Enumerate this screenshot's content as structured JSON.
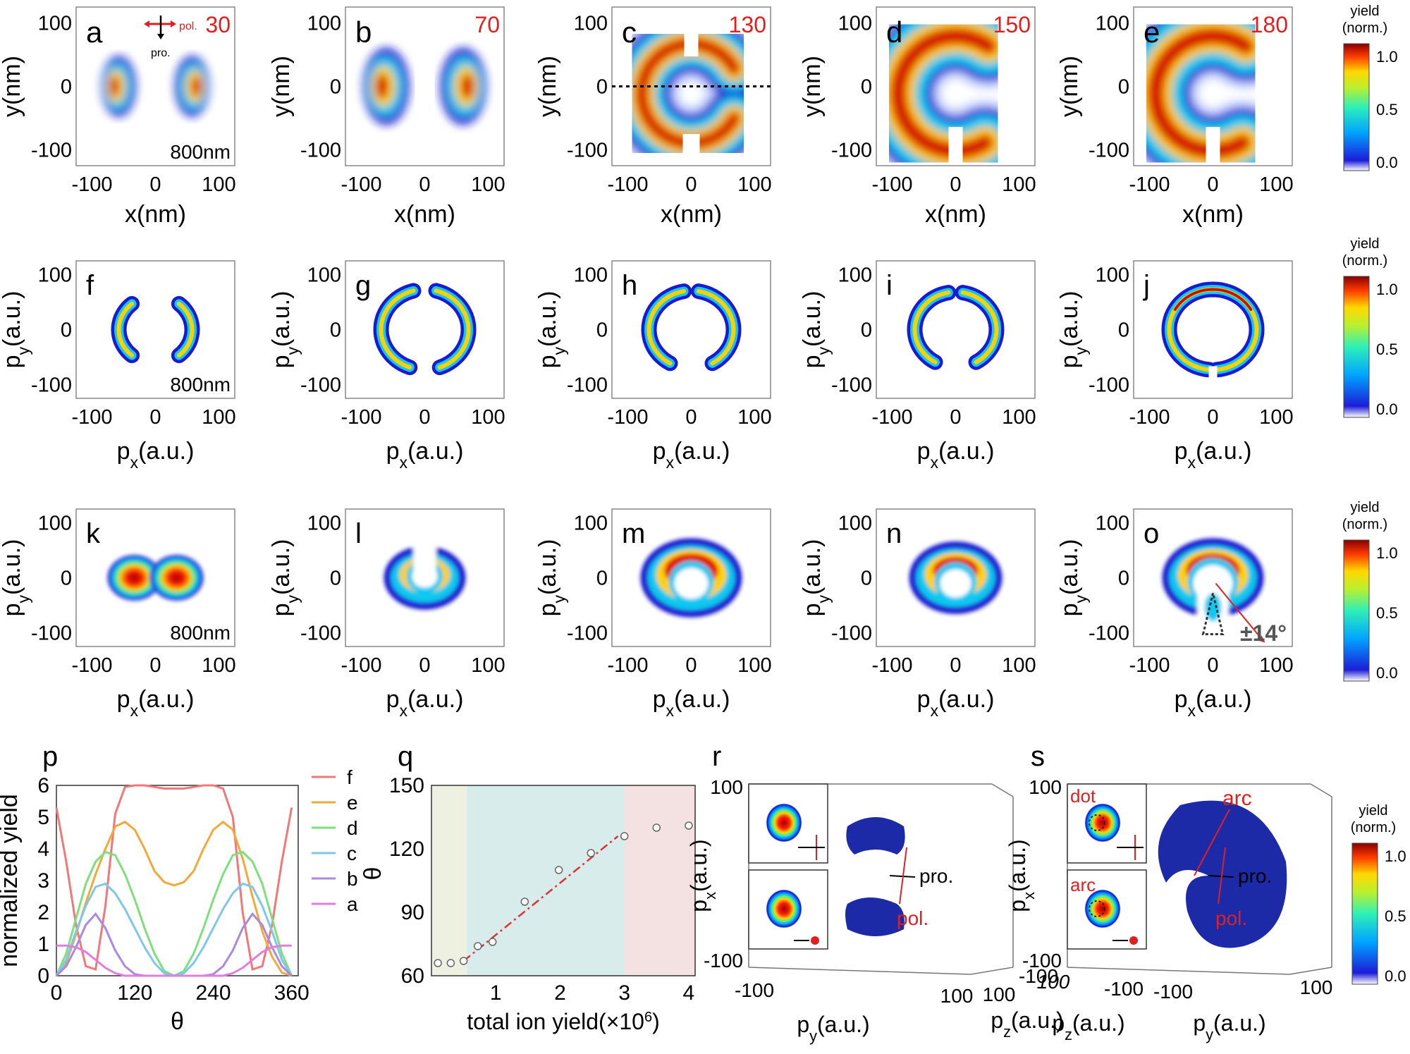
{
  "colorbar": {
    "title1": "yield",
    "title2": "(norm.)",
    "ticks": [
      "1.0",
      "0.5",
      "0.0"
    ]
  },
  "panels_real": [
    {
      "letter": "a",
      "angle": "30",
      "note": "800nm",
      "ylabel": "y(nm)",
      "xlabel": "x(nm)",
      "shape": "crescents",
      "param": 0.2,
      "inset": {
        "pol": "pol.",
        "pro": "pro."
      }
    },
    {
      "letter": "b",
      "angle": "70",
      "ylabel": "y(nm)",
      "xlabel": "x(nm)",
      "shape": "crescents",
      "param": 0.45
    },
    {
      "letter": "c",
      "angle": "130",
      "ylabel": "y(nm)",
      "xlabel": "x(nm)",
      "shape": "open-ring",
      "param": 0.82,
      "dotted_line": true
    },
    {
      "letter": "d",
      "angle": "150",
      "ylabel": "y(nm)",
      "xlabel": "x(nm)",
      "shape": "horseshoe",
      "param": 1.0
    },
    {
      "letter": "e",
      "angle": "180",
      "ylabel": "y(nm)",
      "xlabel": "x(nm)",
      "shape": "horseshoe",
      "param": 1.1
    }
  ],
  "panels_mom": [
    {
      "letter": "f",
      "note": "800nm",
      "ylabel": "p",
      "ysub": "y",
      "yunit": "(a.u.)",
      "xlabel": "p",
      "xsub": "x",
      "xunit": "(a.u.)"
    },
    {
      "letter": "g",
      "ylabel": "p",
      "ysub": "y",
      "yunit": "(a.u.)",
      "xlabel": "p",
      "xsub": "x",
      "xunit": "(a.u.)"
    },
    {
      "letter": "h",
      "ylabel": "p",
      "ysub": "y",
      "yunit": "(a.u.)",
      "xlabel": "p",
      "xsub": "x",
      "xunit": "(a.u.)"
    },
    {
      "letter": "i",
      "ylabel": "p",
      "ysub": "y",
      "yunit": "(a.u.)",
      "xlabel": "p",
      "xsub": "x",
      "xunit": "(a.u.)"
    },
    {
      "letter": "j",
      "ylabel": "p",
      "ysub": "y",
      "yunit": "(a.u.)",
      "xlabel": "p",
      "xsub": "x",
      "xunit": "(a.u.)"
    }
  ],
  "panels_exp": [
    {
      "letter": "k",
      "note": "800nm",
      "ylabel": "p",
      "ysub": "y",
      "yunit": "(a.u.)",
      "xlabel": "p",
      "xsub": "x",
      "xunit": "(a.u.)"
    },
    {
      "letter": "l",
      "ylabel": "p",
      "ysub": "y",
      "yunit": "(a.u.)",
      "xlabel": "p",
      "xsub": "x",
      "xunit": "(a.u.)"
    },
    {
      "letter": "m",
      "ylabel": "p",
      "ysub": "y",
      "yunit": "(a.u.)",
      "xlabel": "p",
      "xsub": "x",
      "xunit": "(a.u.)"
    },
    {
      "letter": "n",
      "ylabel": "p",
      "ysub": "y",
      "yunit": "(a.u.)",
      "xlabel": "p",
      "xsub": "x",
      "xunit": "(a.u.)"
    },
    {
      "letter": "o",
      "ylabel": "p",
      "ysub": "y",
      "yunit": "(a.u.)",
      "xlabel": "p",
      "xsub": "x",
      "xunit": "(a.u.)",
      "angle_note": "±14°"
    }
  ],
  "axis_ticks": [
    "-100",
    "0",
    "100"
  ],
  "panel_p": {
    "letter": "p",
    "ylabel": "normalized yield",
    "xlabel": "θ"
  },
  "panel_q": {
    "letter": "q",
    "ylabel": "θ",
    "xlabel": "total ion yield(×10",
    "xlabel_sup": "6",
    "xlabel_end": ")"
  },
  "panel_r": {
    "letter": "r",
    "ylabel": "p",
    "ysub": "x",
    "yunit": "(a.u.)",
    "xlabel": "p",
    "xsub": "y",
    "xunit": "(a.u.)",
    "zlabel": "p",
    "zsub": "z",
    "zunit": "(a.u.)",
    "ticks": {
      "y_top": "100",
      "y_bot": "-100",
      "x_left": "-100",
      "x_right": "100",
      "z_left": "100",
      "z_right": "-100"
    },
    "pro": "pro.",
    "pol": "pol."
  },
  "panel_s": {
    "letter": "s",
    "ylabel": "p",
    "ysub": "x",
    "yunit": "(a.u.)",
    "xlabel": "p",
    "xsub": "y",
    "xunit": "(a.u.)",
    "zlabel": "p",
    "zsub": "z",
    "zunit": "(a.u.)",
    "ticks": {
      "y_top": "100",
      "y_bot": "-100",
      "z_left": "100",
      "z_right": "-100",
      "x_left": "-100",
      "x_right": "100"
    },
    "pro": "pro.",
    "pol": "pol.",
    "arc": "arc",
    "dot": "dot",
    "arc2": "arc"
  },
  "chart_data": [
    {
      "type": "line",
      "panel": "p",
      "xlabel": "θ",
      "ylabel": "normalized yield",
      "xlim": [
        0,
        370
      ],
      "ylim": [
        0,
        6
      ],
      "xticks": [
        0,
        120,
        240,
        360
      ],
      "yticks": [
        0,
        1,
        2,
        3,
        4,
        5,
        6
      ],
      "legend_position": "right",
      "series": [
        {
          "name": "f",
          "color": "#f07878",
          "x": [
            0,
            15,
            30,
            45,
            60,
            75,
            90,
            105,
            120,
            135,
            150,
            165,
            180,
            195,
            210,
            225,
            240,
            255,
            270,
            285,
            300,
            315,
            330,
            345,
            360
          ],
          "y": [
            5.3,
            3.6,
            1.6,
            0.3,
            0.2,
            2.2,
            5.1,
            5.95,
            6.0,
            6.0,
            5.95,
            5.9,
            5.9,
            5.9,
            5.95,
            6.0,
            6.0,
            5.9,
            5.0,
            2.0,
            0.2,
            0.3,
            1.6,
            3.6,
            5.3
          ]
        },
        {
          "name": "e",
          "color": "#f2a93b",
          "x": [
            0,
            15,
            30,
            45,
            60,
            75,
            90,
            105,
            120,
            135,
            150,
            165,
            180,
            195,
            210,
            225,
            240,
            255,
            270,
            285,
            300,
            315,
            330,
            345,
            360
          ],
          "y": [
            0.0,
            0.4,
            1.3,
            2.3,
            3.2,
            4.0,
            4.7,
            4.85,
            4.6,
            4.0,
            3.3,
            2.95,
            2.85,
            2.95,
            3.3,
            4.0,
            4.6,
            4.85,
            4.6,
            3.7,
            2.5,
            1.4,
            0.6,
            0.1,
            0.0
          ]
        },
        {
          "name": "d",
          "color": "#7de07d",
          "x": [
            0,
            15,
            30,
            45,
            60,
            75,
            90,
            105,
            120,
            135,
            150,
            165,
            180,
            195,
            210,
            225,
            240,
            255,
            270,
            285,
            300,
            315,
            330,
            345,
            360
          ],
          "y": [
            0.0,
            0.7,
            1.8,
            2.9,
            3.6,
            3.9,
            3.8,
            3.2,
            2.4,
            1.5,
            0.7,
            0.15,
            0.0,
            0.15,
            0.7,
            1.5,
            2.4,
            3.2,
            3.8,
            3.9,
            3.6,
            2.9,
            1.8,
            0.7,
            0.0
          ]
        },
        {
          "name": "c",
          "color": "#7ec7ea",
          "x": [
            0,
            15,
            30,
            45,
            60,
            75,
            90,
            105,
            120,
            135,
            150,
            165,
            180,
            195,
            210,
            225,
            240,
            255,
            270,
            285,
            300,
            315,
            330,
            345,
            360
          ],
          "y": [
            0.0,
            0.5,
            1.4,
            2.2,
            2.8,
            2.9,
            2.6,
            2.1,
            1.5,
            0.9,
            0.4,
            0.08,
            0.0,
            0.08,
            0.4,
            0.9,
            1.5,
            2.1,
            2.6,
            2.9,
            2.8,
            2.2,
            1.4,
            0.5,
            0.0
          ]
        },
        {
          "name": "b",
          "color": "#a98ae0",
          "x": [
            0,
            15,
            30,
            45,
            60,
            75,
            90,
            105,
            120,
            135,
            150,
            165,
            180,
            195,
            210,
            225,
            240,
            255,
            270,
            285,
            300,
            315,
            330,
            345,
            360
          ],
          "y": [
            0.0,
            0.3,
            0.9,
            1.6,
            1.95,
            1.5,
            0.8,
            0.3,
            0.05,
            0.0,
            0.0,
            0.0,
            0.0,
            0.0,
            0.0,
            0.0,
            0.05,
            0.3,
            0.8,
            1.5,
            1.95,
            1.6,
            0.9,
            0.3,
            0.0
          ]
        },
        {
          "name": "a",
          "color": "#e07ee0",
          "x": [
            0,
            15,
            30,
            45,
            60,
            75,
            90,
            105,
            120,
            135,
            150,
            165,
            180,
            195,
            210,
            225,
            240,
            255,
            270,
            285,
            300,
            315,
            330,
            345,
            360
          ],
          "y": [
            0.95,
            0.95,
            0.9,
            0.75,
            0.5,
            0.25,
            0.08,
            0.0,
            0.0,
            0.0,
            0.0,
            0.0,
            0.0,
            0.0,
            0.0,
            0.0,
            0.0,
            0.0,
            0.08,
            0.25,
            0.5,
            0.75,
            0.9,
            0.95,
            0.95
          ]
        }
      ]
    },
    {
      "type": "scatter",
      "panel": "q",
      "xlabel": "total ion yield(×10^6)",
      "ylabel": "θ",
      "xlim": [
        0,
        4.1
      ],
      "ylim": [
        60,
        150
      ],
      "xticks": [
        1,
        2,
        3,
        4
      ],
      "yticks": [
        60,
        90,
        120,
        150
      ],
      "regions": [
        {
          "from": 0,
          "to": 0.55,
          "color": "#eef0e2"
        },
        {
          "from": 0.55,
          "to": 3.0,
          "color": "#d8ecec"
        },
        {
          "from": 3.0,
          "to": 4.1,
          "color": "#f4e2e2"
        }
      ],
      "series": [
        {
          "x": [
            0.1,
            0.3,
            0.5,
            0.72,
            0.95,
            1.45,
            1.98,
            2.48,
            3.0,
            3.5,
            4.0
          ],
          "y": [
            66,
            66,
            67,
            74,
            76,
            95,
            110,
            118,
            126,
            130,
            131
          ],
          "marker": "open-circle"
        }
      ],
      "fit": {
        "x": [
          0.5,
          2.9
        ],
        "y": [
          67,
          126
        ],
        "style": "dash-dot",
        "color": "#e03030"
      }
    }
  ]
}
